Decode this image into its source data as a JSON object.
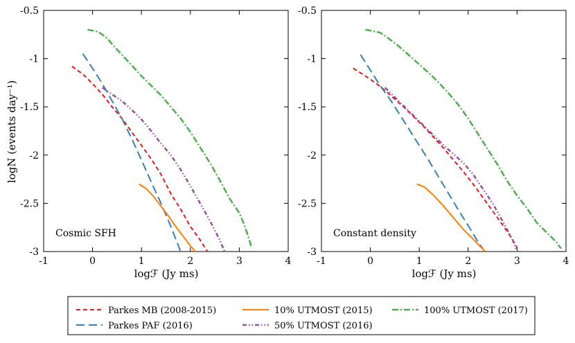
{
  "chart_data": [
    {
      "type": "line",
      "panel": "left",
      "annotation": "Cosmic SFH",
      "xlabel": "logℱ (Jy ms)",
      "ylabel": "logN (events day⁻¹)",
      "xlim": [
        -1,
        4
      ],
      "ylim": [
        -3,
        -0.5
      ],
      "xticks": [
        -1,
        0,
        1,
        2,
        3,
        4
      ],
      "yticks": [
        -3,
        -2.5,
        -2,
        -1.5,
        -1,
        -0.5
      ],
      "xtick_labels": [
        "-1",
        "0",
        "1",
        "2",
        "3",
        "4"
      ],
      "ytick_labels": [
        "-3",
        "-2.5",
        "-2",
        "-1.5",
        "-1",
        "-0.5"
      ],
      "series": [
        {
          "name": "Parkes MB (2008-2015)",
          "color": "#e41a1c",
          "style": "dashed",
          "x": [
            -0.42,
            -0.2,
            0.0,
            0.2,
            0.4,
            0.6,
            0.8,
            1.0,
            1.2,
            1.4,
            1.6,
            1.8,
            2.0,
            2.2,
            2.35
          ],
          "y": [
            -1.08,
            -1.16,
            -1.26,
            -1.37,
            -1.5,
            -1.62,
            -1.76,
            -1.9,
            -2.04,
            -2.2,
            -2.4,
            -2.56,
            -2.74,
            -2.88,
            -3.0
          ]
        },
        {
          "name": "Parkes PAF (2016)",
          "color": "#377eb8",
          "style": "longdash",
          "x": [
            -0.2,
            0.0,
            0.2,
            0.4,
            0.6,
            0.8,
            1.0,
            1.2,
            1.4,
            1.6,
            1.8
          ],
          "y": [
            -0.95,
            -1.1,
            -1.26,
            -1.44,
            -1.62,
            -1.83,
            -2.05,
            -2.28,
            -2.5,
            -2.74,
            -3.0
          ]
        },
        {
          "name": "10% UTMOST (2015)",
          "color": "#ff7f00",
          "style": "solid",
          "x": [
            0.95,
            1.1,
            1.25,
            1.4,
            1.55,
            1.7,
            1.85,
            2.0,
            2.1
          ],
          "y": [
            -2.3,
            -2.35,
            -2.43,
            -2.53,
            -2.63,
            -2.74,
            -2.84,
            -2.94,
            -3.0
          ]
        },
        {
          "name": "50% UTMOST (2016)",
          "color": "#984ea3",
          "style": "dashdotdot",
          "x": [
            0.2,
            0.4,
            0.6,
            0.8,
            1.0,
            1.2,
            1.4,
            1.6,
            1.8,
            2.0,
            2.2,
            2.4,
            2.6,
            2.7
          ],
          "y": [
            -1.3,
            -1.37,
            -1.44,
            -1.53,
            -1.63,
            -1.75,
            -1.88,
            -2.0,
            -2.15,
            -2.32,
            -2.5,
            -2.68,
            -2.88,
            -3.0
          ]
        },
        {
          "name": "100% UTMOST (2017)",
          "color": "#4daf4a",
          "style": "dashdot",
          "x": [
            -0.1,
            0.0,
            0.1,
            0.2,
            0.3,
            0.4,
            0.6,
            0.8,
            1.0,
            1.2,
            1.4,
            1.6,
            1.8,
            2.0,
            2.2,
            2.4,
            2.6,
            2.8,
            3.0,
            3.1,
            3.2,
            3.25
          ],
          "y": [
            -0.7,
            -0.71,
            -0.72,
            -0.75,
            -0.79,
            -0.85,
            -0.96,
            -1.07,
            -1.18,
            -1.28,
            -1.38,
            -1.5,
            -1.62,
            -1.76,
            -1.92,
            -2.08,
            -2.26,
            -2.45,
            -2.6,
            -2.72,
            -2.87,
            -2.96
          ]
        }
      ]
    },
    {
      "type": "line",
      "panel": "right",
      "annotation": "Constant density",
      "xlabel": "logℱ (Jy ms)",
      "xlim": [
        -1,
        4
      ],
      "ylim": [
        -3,
        -0.5
      ],
      "xticks": [
        -1,
        0,
        1,
        2,
        3,
        4
      ],
      "yticks": [
        -3,
        -2.5,
        -2,
        -1.5,
        -1,
        -0.5
      ],
      "xtick_labels": [
        "-1",
        "0",
        "1",
        "2",
        "3",
        "4"
      ],
      "ytick_labels": [
        "-3",
        "-2.5",
        "-2",
        "-1.5",
        "-1",
        "-0.5"
      ],
      "series": [
        {
          "name": "Parkes MB (2008-2015)",
          "color": "#e41a1c",
          "style": "dashed",
          "x": [
            -0.35,
            -0.1,
            0.1,
            0.3,
            0.5,
            0.7,
            0.9,
            1.1,
            1.3,
            1.5,
            1.7,
            1.9,
            2.1,
            2.3,
            2.5,
            2.7,
            2.9,
            3.0
          ],
          "y": [
            -1.1,
            -1.18,
            -1.25,
            -1.33,
            -1.42,
            -1.51,
            -1.61,
            -1.71,
            -1.82,
            -1.93,
            -2.05,
            -2.17,
            -2.3,
            -2.44,
            -2.58,
            -2.72,
            -2.87,
            -2.96
          ]
        },
        {
          "name": "Parkes PAF (2016)",
          "color": "#377eb8",
          "style": "longdash",
          "x": [
            -0.2,
            0.0,
            0.2,
            0.4,
            0.6,
            0.8,
            1.0,
            1.2,
            1.4,
            1.6,
            1.8,
            2.0,
            2.2,
            2.3
          ],
          "y": [
            -0.96,
            -1.12,
            -1.28,
            -1.42,
            -1.58,
            -1.74,
            -1.9,
            -2.06,
            -2.23,
            -2.4,
            -2.57,
            -2.73,
            -2.9,
            -2.97
          ]
        },
        {
          "name": "10% UTMOST (2015)",
          "color": "#ff7f00",
          "style": "solid",
          "x": [
            0.95,
            1.1,
            1.3,
            1.5,
            1.7,
            1.9,
            2.1,
            2.25,
            2.35
          ],
          "y": [
            -2.3,
            -2.33,
            -2.42,
            -2.53,
            -2.65,
            -2.77,
            -2.87,
            -2.95,
            -3.0
          ]
        },
        {
          "name": "50% UTMOST (2016)",
          "color": "#984ea3",
          "style": "dashdotdot",
          "x": [
            0.3,
            0.5,
            0.7,
            0.9,
            1.1,
            1.3,
            1.5,
            1.7,
            1.9,
            2.1,
            2.3,
            2.5,
            2.7,
            2.9,
            3.0
          ],
          "y": [
            -1.3,
            -1.4,
            -1.5,
            -1.6,
            -1.7,
            -1.8,
            -1.9,
            -1.99,
            -2.08,
            -2.2,
            -2.35,
            -2.5,
            -2.68,
            -2.87,
            -3.0
          ]
        },
        {
          "name": "100% UTMOST (2017)",
          "color": "#4daf4a",
          "style": "dashdot",
          "x": [
            -0.1,
            0.0,
            0.2,
            0.4,
            0.6,
            0.8,
            1.0,
            1.2,
            1.4,
            1.6,
            1.8,
            2.0,
            2.2,
            2.4,
            2.6,
            2.8,
            3.0,
            3.2,
            3.4,
            3.6,
            3.8,
            3.9
          ],
          "y": [
            -0.7,
            -0.71,
            -0.73,
            -0.8,
            -0.88,
            -0.97,
            -1.06,
            -1.15,
            -1.25,
            -1.36,
            -1.48,
            -1.62,
            -1.78,
            -1.94,
            -2.1,
            -2.27,
            -2.42,
            -2.55,
            -2.7,
            -2.8,
            -2.9,
            -2.97
          ]
        }
      ]
    }
  ],
  "legend": {
    "location": "bottom-center",
    "entries": [
      {
        "label": "Parkes MB (2008-2015)",
        "color": "#e41a1c",
        "style": "dashed"
      },
      {
        "label": "Parkes PAF (2016)",
        "color": "#377eb8",
        "style": "longdash"
      },
      {
        "label": "10% UTMOST (2015)",
        "color": "#ff7f00",
        "style": "solid"
      },
      {
        "label": "50% UTMOST (2016)",
        "color": "#984ea3",
        "style": "dashdotdot"
      },
      {
        "label": "100% UTMOST (2017)",
        "color": "#4daf4a",
        "style": "dashdot"
      }
    ]
  }
}
